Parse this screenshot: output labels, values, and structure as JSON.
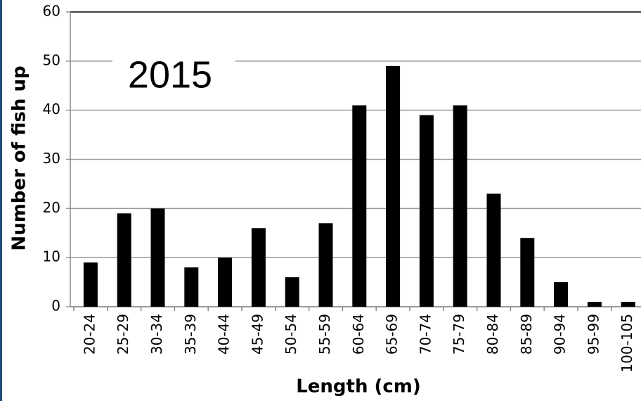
{
  "chart_data": {
    "type": "bar",
    "annotation": "2015",
    "x_label": "Length (cm)",
    "y_label": "Number of fish up",
    "categories": [
      "20-24",
      "25-29",
      "30-34",
      "35-39",
      "40-44",
      "45-49",
      "50-54",
      "55-59",
      "60-64",
      "65-69",
      "70-74",
      "75-79",
      "80-84",
      "85-89",
      "90-94",
      "95-99",
      "100-105"
    ],
    "values": [
      9,
      19,
      20,
      8,
      10,
      16,
      6,
      17,
      41,
      49,
      39,
      41,
      23,
      14,
      5,
      1,
      1
    ],
    "color": "#000000",
    "ylim": [
      0,
      60
    ],
    "yticks": [
      0,
      10,
      20,
      30,
      40,
      50,
      60
    ],
    "grid": true
  }
}
